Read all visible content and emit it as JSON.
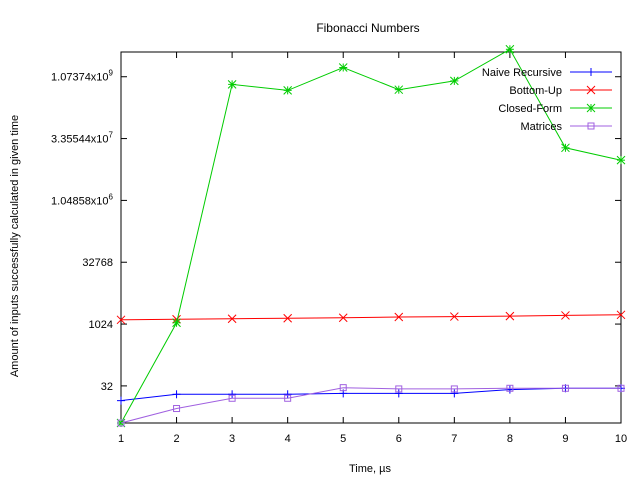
{
  "chart_data": {
    "type": "line",
    "title": "Fibonacci Numbers",
    "xlabel": "Time, µs",
    "ylabel": "Amount of inputs successfully calculated in given time",
    "yscale": "log2",
    "xlim": [
      1,
      10
    ],
    "ylim": [
      4,
      4294967296
    ],
    "x_ticks": [
      {
        "value": 1,
        "label": "1"
      },
      {
        "value": 2,
        "label": "2"
      },
      {
        "value": 3,
        "label": "3"
      },
      {
        "value": 4,
        "label": "4"
      },
      {
        "value": 5,
        "label": "5"
      },
      {
        "value": 6,
        "label": "6"
      },
      {
        "value": 7,
        "label": "7"
      },
      {
        "value": 8,
        "label": "8"
      },
      {
        "value": 9,
        "label": "9"
      },
      {
        "value": 10,
        "label": "10"
      }
    ],
    "y_ticks": [
      {
        "value": 32,
        "label": "32"
      },
      {
        "value": 1024,
        "label": "1024"
      },
      {
        "value": 32768,
        "label": "32768"
      },
      {
        "value": 1048576,
        "label_mantissa": "1.04858x10",
        "label_exp": "6"
      },
      {
        "value": 33554432,
        "label_mantissa": "3.35544x10",
        "label_exp": "7"
      },
      {
        "value": 1073741824,
        "label_mantissa": "1.07374x10",
        "label_exp": "9"
      }
    ],
    "grid": false,
    "legend_position": "top-right",
    "x": [
      1,
      2,
      3,
      4,
      5,
      6,
      7,
      8,
      9,
      10
    ],
    "series": [
      {
        "name": "Naive Recursive",
        "color": "#0000ff",
        "marker": "plus",
        "values": [
          14,
          20,
          20,
          20,
          21,
          21,
          21,
          26,
          28,
          28
        ]
      },
      {
        "name": "Bottom-Up",
        "color": "#ff0000",
        "marker": "cross",
        "values": [
          1300,
          1340,
          1380,
          1420,
          1460,
          1520,
          1560,
          1600,
          1660,
          1720
        ]
      },
      {
        "name": "Closed-Form",
        "color": "#00cc00",
        "marker": "star",
        "values": [
          4,
          1100,
          700000000,
          500000000,
          1800000000,
          520000000,
          850000000,
          5000000000,
          20000000,
          10000000
        ]
      },
      {
        "name": "Matrices",
        "color": "#a060e0",
        "marker": "square",
        "values": [
          4,
          9,
          16,
          16,
          29,
          27,
          27,
          28,
          28,
          28
        ]
      }
    ]
  }
}
